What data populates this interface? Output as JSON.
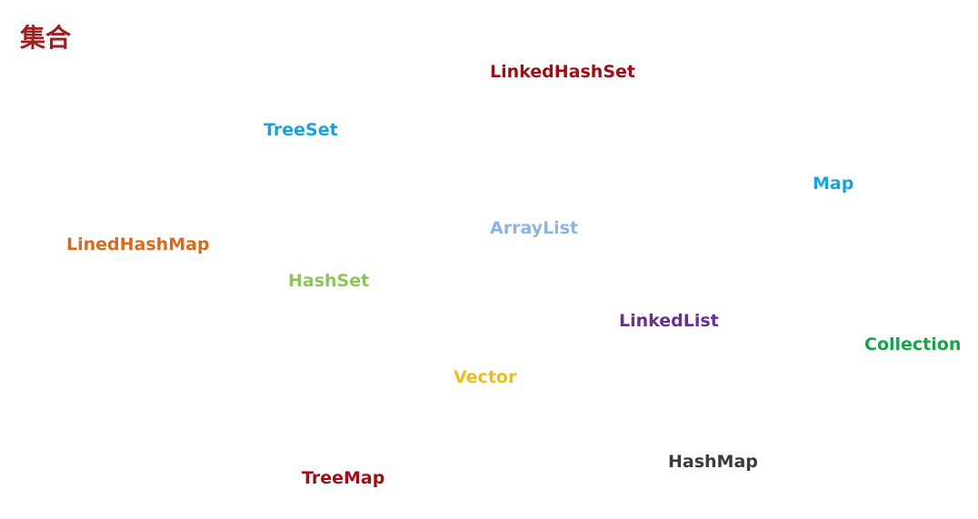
{
  "title": {
    "text": "集合",
    "color": "#a01e22"
  },
  "terms": [
    {
      "id": "linkedhashset",
      "text": "LinkedHashSet",
      "color": "#a00d15"
    },
    {
      "id": "treeset",
      "text": "TreeSet",
      "color": "#1aa3d9"
    },
    {
      "id": "map",
      "text": "Map",
      "color": "#1aa3d9"
    },
    {
      "id": "arraylist",
      "text": "ArrayList",
      "color": "#8db4e6"
    },
    {
      "id": "linedhashmap",
      "text": "LinedHashMap",
      "color": "#d86a1c"
    },
    {
      "id": "hashset",
      "text": "HashSet",
      "color": "#8dc55a"
    },
    {
      "id": "linkedlist",
      "text": "LinkedList",
      "color": "#6a2e91"
    },
    {
      "id": "collection",
      "text": "Collection",
      "color": "#16a34a"
    },
    {
      "id": "vector",
      "text": "Vector",
      "color": "#ecbd1e"
    },
    {
      "id": "hashmap",
      "text": "HashMap",
      "color": "#3a3a3a"
    },
    {
      "id": "treemap",
      "text": "TreeMap",
      "color": "#a00d15"
    }
  ]
}
